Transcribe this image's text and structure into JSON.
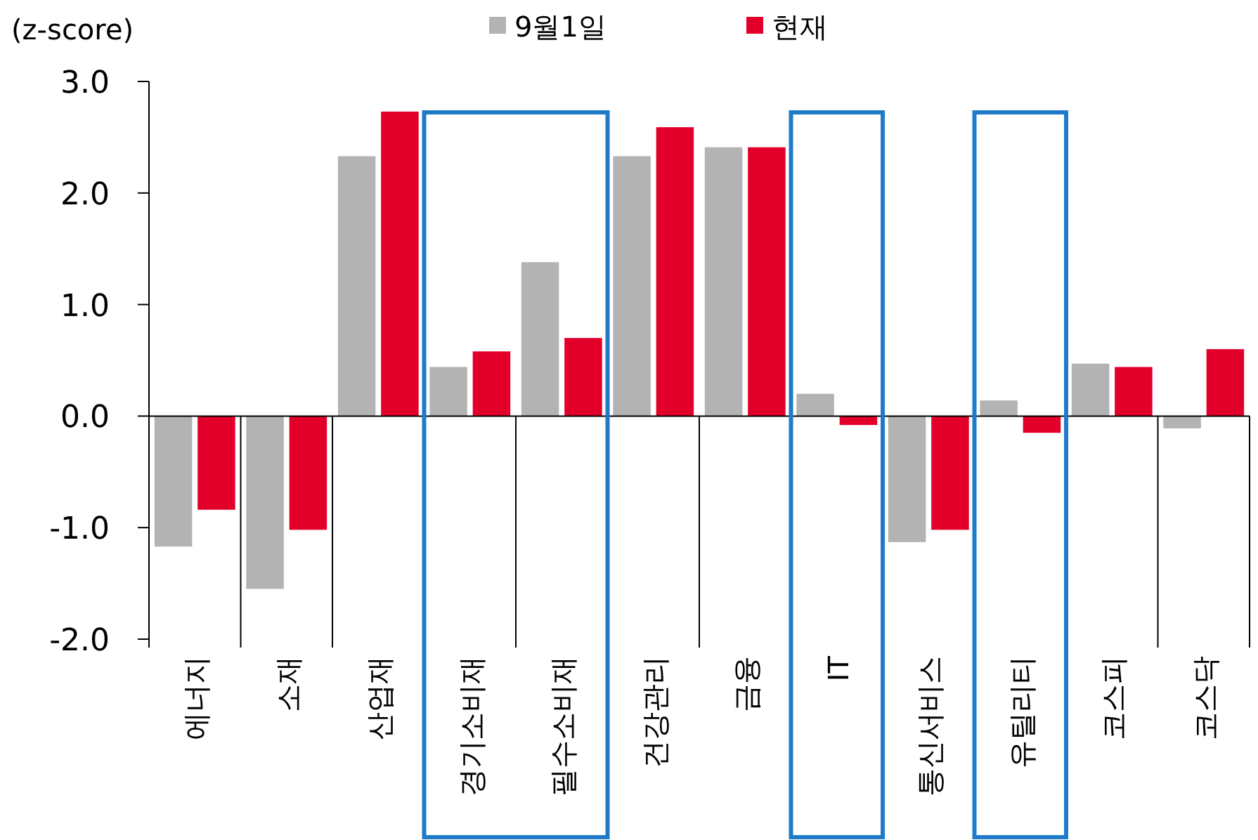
{
  "chart_data": {
    "type": "bar",
    "ylabel": "(z-score)",
    "categories": [
      "에너지",
      "소재",
      "산업재",
      "경기소비재",
      "필수소비재",
      "건강관리",
      "금융",
      "IT",
      "통신서비스",
      "유틸리티",
      "코스피",
      "코스닥"
    ],
    "series": [
      {
        "name": "9월1일",
        "color": "#b3b3b3",
        "values": [
          -1.17,
          -1.55,
          2.33,
          0.44,
          1.38,
          2.33,
          2.41,
          0.2,
          -1.13,
          0.14,
          0.47,
          -0.11
        ]
      },
      {
        "name": "현재",
        "color": "#e2002b",
        "values": [
          -0.84,
          -1.02,
          2.73,
          0.58,
          0.7,
          2.59,
          2.41,
          -0.08,
          -1.02,
          -0.15,
          0.44,
          0.6
        ]
      }
    ],
    "ylim": [
      -2,
      3
    ],
    "yticks": [
      {
        "value": -2,
        "label": "-2.0"
      },
      {
        "value": -1,
        "label": "-1.0"
      },
      {
        "value": 0,
        "label": "0.0"
      },
      {
        "value": 1,
        "label": "1.0"
      },
      {
        "value": 2,
        "label": "2.0"
      },
      {
        "value": 3,
        "label": "3.0"
      }
    ],
    "legend": "top"
  }
}
